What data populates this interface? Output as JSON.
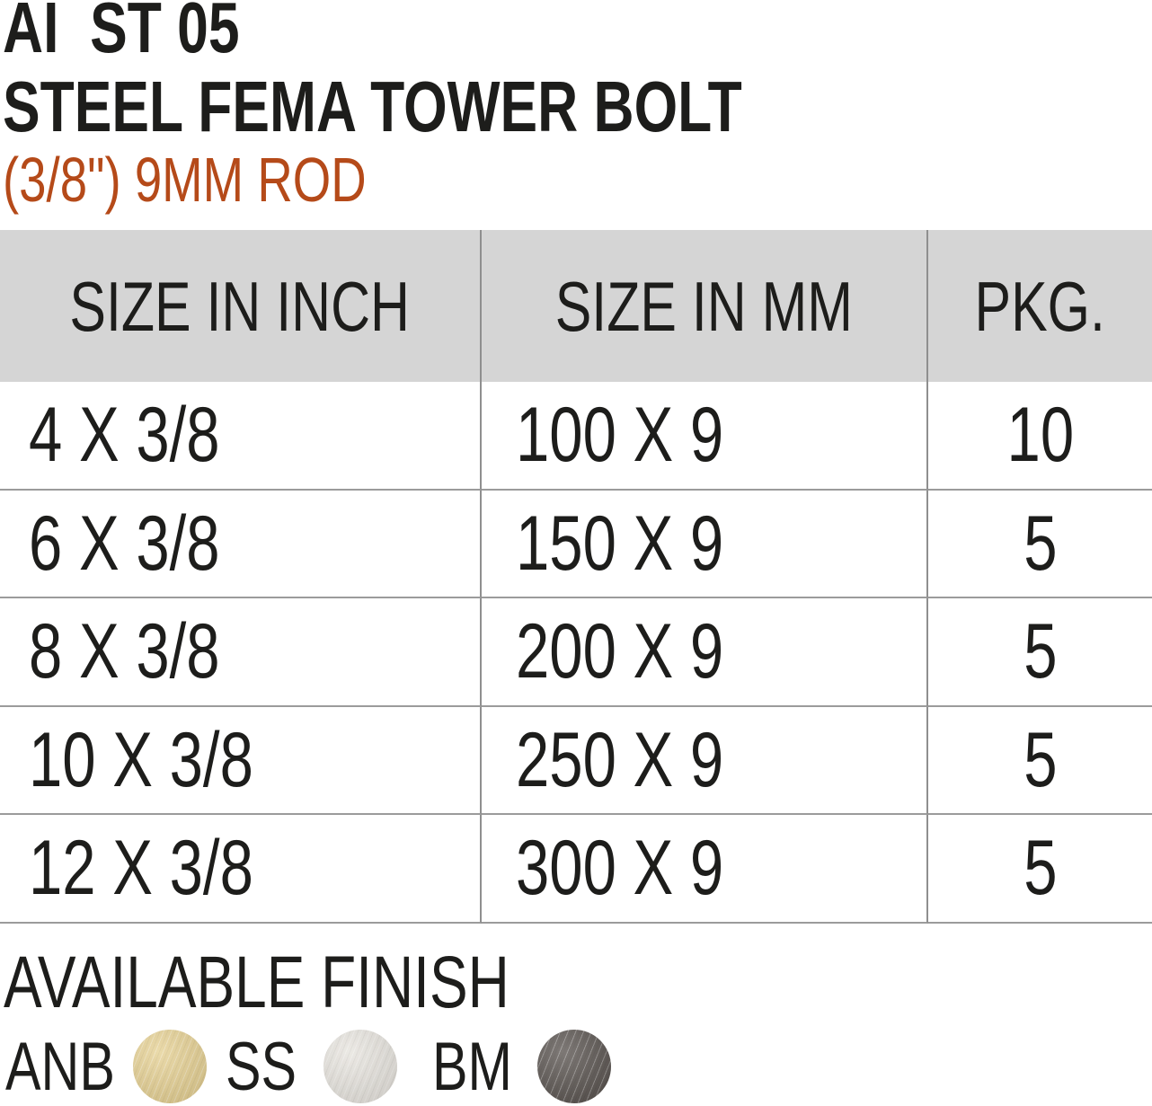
{
  "header": {
    "code": "AI  ST 05",
    "title": "STEEL FEMA TOWER BOLT",
    "subtitle": "(3/8\") 9MM ROD"
  },
  "colors": {
    "text": "#1d1d1b",
    "accent_orange": "#b54a19",
    "table_header_bg": "#d5d5d5",
    "grid_line_vertical": "#8f8f8f",
    "grid_line_horizontal": "#9b9b9b"
  },
  "table": {
    "headers": [
      "SIZE IN INCH",
      "SIZE IN MM",
      "PKG."
    ],
    "rows": [
      [
        "4 X 3/8",
        "100 X 9",
        "10"
      ],
      [
        "6 X 3/8",
        "150 X 9",
        "5"
      ],
      [
        "8 X 3/8",
        "200 X 9",
        "5"
      ],
      [
        "10 X 3/8",
        "250 X 9",
        "5"
      ],
      [
        "12 X 3/8",
        "300 X 9",
        "5"
      ]
    ]
  },
  "finish": {
    "heading": "AVAILABLE FINISH",
    "options": [
      {
        "label": "ANB",
        "swatch": "antique-brass",
        "color": "#e5d093"
      },
      {
        "label": "SS",
        "swatch": "stainless-steel",
        "color": "#e6e3dd"
      },
      {
        "label": "BM",
        "swatch": "black-matte",
        "color": "#5a5450"
      }
    ]
  }
}
